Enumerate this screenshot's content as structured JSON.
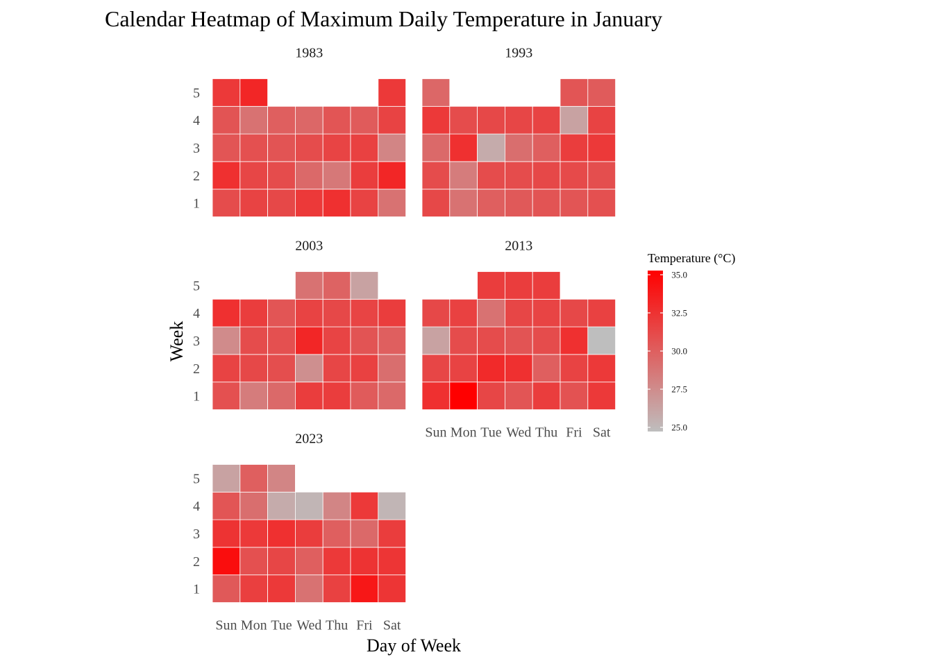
{
  "chart_data": {
    "type": "heatmap",
    "title": "Calendar Heatmap of Maximum Daily Temperature in January",
    "xlabel": "Day of Week",
    "ylabel": "Week",
    "days": [
      "Sun",
      "Mon",
      "Tue",
      "Wed",
      "Thu",
      "Fri",
      "Sat"
    ],
    "weeks": [
      "1",
      "2",
      "3",
      "4",
      "5"
    ],
    "legend": {
      "title": "Temperature (°C)",
      "min": 25.0,
      "max": 35.0,
      "ticks": [
        "25.0",
        "27.5",
        "30.0",
        "32.5",
        "35.0"
      ],
      "low_color": "#bebebe",
      "high_color": "#ff0000",
      "placement": "right"
    },
    "facets": [
      {
        "year": "1983",
        "weeks": [
          [
            31.0,
            31.5,
            31.2,
            32.0,
            32.5,
            31.5,
            29.0
          ],
          [
            32.5,
            31.3,
            31.0,
            29.5,
            28.7,
            31.8,
            33.0
          ],
          [
            30.5,
            30.8,
            30.6,
            31.0,
            31.4,
            31.6,
            28.0
          ],
          [
            30.6,
            29.0,
            30.0,
            29.6,
            30.5,
            30.2,
            31.5
          ],
          [
            32.0,
            33.0,
            null,
            null,
            null,
            null,
            32.0
          ]
        ]
      },
      {
        "year": "1993",
        "weeks": [
          [
            31.2,
            29.0,
            30.0,
            30.3,
            30.6,
            30.5,
            30.8
          ],
          [
            31.0,
            28.5,
            31.0,
            31.0,
            31.2,
            31.1,
            30.9
          ],
          [
            29.5,
            32.5,
            26.0,
            29.2,
            30.0,
            31.8,
            32.0
          ],
          [
            32.0,
            31.0,
            31.2,
            31.3,
            31.5,
            26.5,
            31.5
          ],
          [
            29.6,
            null,
            null,
            null,
            null,
            30.5,
            30.2
          ]
        ]
      },
      {
        "year": "2003",
        "weeks": [
          [
            30.8,
            28.5,
            29.5,
            31.8,
            31.8,
            30.2,
            29.5
          ],
          [
            31.5,
            31.2,
            30.9,
            27.5,
            31.3,
            31.6,
            29.2
          ],
          [
            27.7,
            31.0,
            30.8,
            33.0,
            31.4,
            30.6,
            30.0
          ],
          [
            32.5,
            31.8,
            30.5,
            31.5,
            31.2,
            31.4,
            31.8
          ],
          [
            null,
            null,
            null,
            29.0,
            29.8,
            26.5,
            null
          ]
        ]
      },
      {
        "year": "2013",
        "weeks": [
          [
            32.5,
            35.0,
            31.3,
            30.5,
            31.8,
            30.7,
            32.0
          ],
          [
            31.3,
            31.5,
            32.8,
            32.5,
            30.0,
            31.5,
            32.0
          ],
          [
            26.5,
            31.0,
            31.0,
            30.6,
            31.0,
            32.5,
            25.0
          ],
          [
            31.2,
            31.6,
            29.0,
            31.3,
            31.4,
            31.2,
            31.6
          ],
          [
            null,
            null,
            31.8,
            31.8,
            31.8,
            null,
            null
          ]
        ]
      },
      {
        "year": "2023",
        "weeks": [
          [
            30.3,
            31.7,
            32.0,
            29.0,
            31.6,
            33.8,
            32.2
          ],
          [
            34.3,
            30.8,
            31.3,
            30.0,
            32.0,
            32.3,
            32.2
          ],
          [
            32.3,
            32.0,
            32.5,
            31.8,
            30.0,
            29.5,
            31.8
          ],
          [
            30.5,
            29.2,
            26.0,
            25.5,
            28.0,
            32.0,
            25.5
          ],
          [
            26.5,
            30.0,
            28.0,
            null,
            null,
            null,
            null
          ]
        ]
      }
    ]
  }
}
